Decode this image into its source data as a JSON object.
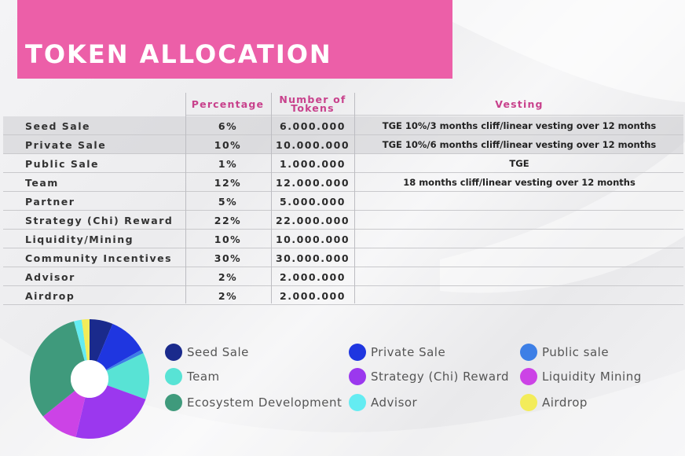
{
  "header": {
    "title": "TOKEN ALLOCATION"
  },
  "table": {
    "columns": [
      "",
      "Percentage",
      "Number of Tokens",
      "Vesting"
    ],
    "rows": [
      {
        "name": "Seed Sale",
        "pct": "6%",
        "tokens": "6.000.000",
        "vesting": "TGE 10%/3 months cliff/linear vesting over 12 months"
      },
      {
        "name": "Private Sale",
        "pct": "10%",
        "tokens": "10.000.000",
        "vesting": "TGE 10%/6 months cliff/linear vesting over 12 months"
      },
      {
        "name": "Public Sale",
        "pct": "1%",
        "tokens": "1.000.000",
        "vesting": "TGE"
      },
      {
        "name": "Team",
        "pct": "12%",
        "tokens": "12.000.000",
        "vesting": "18 months cliff/linear vesting over 12 months"
      },
      {
        "name": "Partner",
        "pct": "5%",
        "tokens": "5.000.000",
        "vesting": ""
      },
      {
        "name": "Strategy (Chi) Reward",
        "pct": "22%",
        "tokens": "22.000.000",
        "vesting": ""
      },
      {
        "name": "Liquidity/Mining",
        "pct": "10%",
        "tokens": "10.000.000",
        "vesting": ""
      },
      {
        "name": "Community Incentives",
        "pct": "30%",
        "tokens": "30.000.000",
        "vesting": ""
      },
      {
        "name": "Advisor",
        "pct": "2%",
        "tokens": "2.000.000",
        "vesting": ""
      },
      {
        "name": "Airdrop",
        "pct": "2%",
        "tokens": "2.000.000",
        "vesting": ""
      }
    ]
  },
  "chart_data": {
    "type": "pie",
    "donut": true,
    "slices": [
      {
        "label": "Seed Sale",
        "value": 6,
        "color": "#1a2a8c"
      },
      {
        "label": "Private Sale",
        "value": 10,
        "color": "#1f36e0"
      },
      {
        "label": "Public sale",
        "value": 1,
        "color": "#3d7fe6"
      },
      {
        "label": "Team",
        "value": 12,
        "color": "#58e3d5"
      },
      {
        "label": "Strategy (Chi) Reward",
        "value": 22,
        "color": "#9b38ee"
      },
      {
        "label": "Liquidity Mining",
        "value": 10,
        "color": "#cc43e6"
      },
      {
        "label": "Ecosystem Development",
        "value": 30,
        "color": "#3f9a7c"
      },
      {
        "label": "Advisor",
        "value": 2,
        "color": "#64ecf2"
      },
      {
        "label": "Airdrop",
        "value": 2,
        "color": "#f3ec5a"
      }
    ],
    "legend": [
      {
        "label": "Seed Sale",
        "color": "#1a2a8c"
      },
      {
        "label": "Private Sale",
        "color": "#1f36e0"
      },
      {
        "label": "Public sale",
        "color": "#3d7fe6"
      },
      {
        "label": "Team",
        "color": "#58e3d5"
      },
      {
        "label": "Strategy (Chi) Reward",
        "color": "#9b38ee"
      },
      {
        "label": "Liquidity Mining",
        "color": "#cc43e6"
      },
      {
        "label": "Ecosystem Development",
        "color": "#3f9a7c"
      },
      {
        "label": "Advisor",
        "color": "#64ecf2"
      },
      {
        "label": "Airdrop",
        "color": "#f3ec5a"
      }
    ],
    "legend_placement": "right"
  }
}
